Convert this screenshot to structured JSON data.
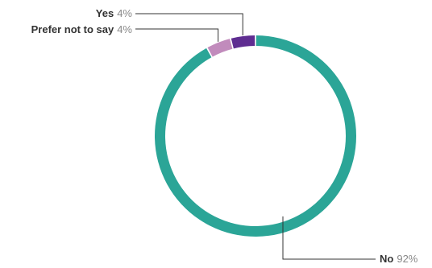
{
  "chart_data": {
    "type": "pie",
    "variant": "donut",
    "title": "",
    "slices": [
      {
        "name": "No",
        "value": 92,
        "label": "92%",
        "color": "#2ba597"
      },
      {
        "name": "Prefer not to say",
        "value": 4,
        "label": "4%",
        "color": "#c18bbc"
      },
      {
        "name": "Yes",
        "value": 4,
        "label": "4%",
        "color": "#5f2d91"
      }
    ],
    "legend": "none"
  }
}
